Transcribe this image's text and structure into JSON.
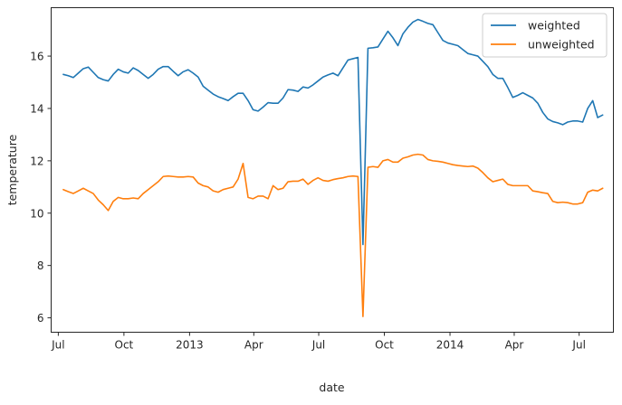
{
  "chart_data": {
    "type": "line",
    "xlabel": "date",
    "ylabel": "temperature",
    "ylim": [
      5.45,
      17.85
    ],
    "xlim": [
      "2012-06-21",
      "2014-08-18"
    ],
    "x_ticks": [
      {
        "date": "2012-07-01",
        "label": "Jul"
      },
      {
        "date": "2012-10-01",
        "label": "Oct"
      },
      {
        "date": "2013-01-01",
        "label": "2013"
      },
      {
        "date": "2013-04-01",
        "label": "Apr"
      },
      {
        "date": "2013-07-01",
        "label": "Jul"
      },
      {
        "date": "2013-10-01",
        "label": "Oct"
      },
      {
        "date": "2014-01-01",
        "label": "2014"
      },
      {
        "date": "2014-04-01",
        "label": "Apr"
      },
      {
        "date": "2014-07-01",
        "label": "Jul"
      }
    ],
    "y_ticks": [
      {
        "value": 6,
        "label": "6"
      },
      {
        "value": 8,
        "label": "8"
      },
      {
        "value": 10,
        "label": "10"
      },
      {
        "value": 12,
        "label": "12"
      },
      {
        "value": 14,
        "label": "14"
      },
      {
        "value": 16,
        "label": "16"
      }
    ],
    "x": [
      "2012-07-08",
      "2012-07-15",
      "2012-07-22",
      "2012-07-29",
      "2012-08-05",
      "2012-08-12",
      "2012-08-19",
      "2012-08-26",
      "2012-09-02",
      "2012-09-09",
      "2012-09-16",
      "2012-09-23",
      "2012-09-30",
      "2012-10-07",
      "2012-10-14",
      "2012-10-21",
      "2012-10-28",
      "2012-11-04",
      "2012-11-11",
      "2012-11-18",
      "2012-11-25",
      "2012-12-02",
      "2012-12-09",
      "2012-12-16",
      "2012-12-23",
      "2012-12-30",
      "2013-01-06",
      "2013-01-13",
      "2013-01-20",
      "2013-01-27",
      "2013-02-03",
      "2013-02-10",
      "2013-02-17",
      "2013-02-24",
      "2013-03-03",
      "2013-03-10",
      "2013-03-17",
      "2013-03-24",
      "2013-03-31",
      "2013-04-07",
      "2013-04-14",
      "2013-04-21",
      "2013-04-28",
      "2013-05-05",
      "2013-05-12",
      "2013-05-19",
      "2013-05-26",
      "2013-06-02",
      "2013-06-09",
      "2013-06-16",
      "2013-06-23",
      "2013-06-30",
      "2013-07-07",
      "2013-07-14",
      "2013-07-21",
      "2013-07-28",
      "2013-08-04",
      "2013-08-11",
      "2013-08-18",
      "2013-08-25",
      "2013-09-01",
      "2013-09-08",
      "2013-09-15",
      "2013-09-22",
      "2013-09-29",
      "2013-10-06",
      "2013-10-13",
      "2013-10-20",
      "2013-10-27",
      "2013-11-03",
      "2013-11-10",
      "2013-11-17",
      "2013-11-24",
      "2013-12-01",
      "2013-12-08",
      "2013-12-15",
      "2013-12-22",
      "2013-12-29",
      "2014-01-05",
      "2014-01-12",
      "2014-01-19",
      "2014-01-26",
      "2014-02-02",
      "2014-02-09",
      "2014-02-16",
      "2014-02-23",
      "2014-03-02",
      "2014-03-09",
      "2014-03-16",
      "2014-03-23",
      "2014-03-30",
      "2014-04-06",
      "2014-04-13",
      "2014-04-20",
      "2014-04-27",
      "2014-05-04",
      "2014-05-11",
      "2014-05-18",
      "2014-05-25",
      "2014-06-01",
      "2014-06-08",
      "2014-06-15",
      "2014-06-22",
      "2014-06-29",
      "2014-07-06",
      "2014-07-13",
      "2014-07-20",
      "2014-07-27",
      "2014-08-03"
    ],
    "series": [
      {
        "name": "weighted",
        "color": "#1f77b4",
        "values": [
          15.3,
          15.25,
          15.18,
          15.35,
          15.52,
          15.58,
          15.38,
          15.18,
          15.1,
          15.05,
          15.3,
          15.5,
          15.4,
          15.35,
          15.55,
          15.45,
          15.3,
          15.15,
          15.3,
          15.5,
          15.6,
          15.6,
          15.42,
          15.25,
          15.4,
          15.48,
          15.35,
          15.2,
          14.85,
          14.7,
          14.55,
          14.45,
          14.38,
          14.3,
          14.45,
          14.58,
          14.58,
          14.3,
          13.95,
          13.9,
          14.05,
          14.22,
          14.2,
          14.2,
          14.4,
          14.72,
          14.7,
          14.65,
          14.82,
          14.78,
          14.9,
          15.05,
          15.2,
          15.28,
          15.35,
          15.25,
          15.55,
          15.85,
          15.9,
          15.95,
          8.8,
          16.3,
          16.32,
          16.35,
          16.65,
          16.95,
          16.7,
          16.4,
          16.85,
          17.1,
          17.3,
          17.4,
          17.33,
          17.25,
          17.2,
          16.9,
          16.6,
          16.5,
          16.45,
          16.4,
          16.25,
          16.1,
          16.05,
          16.0,
          15.8,
          15.6,
          15.3,
          15.15,
          15.15,
          14.8,
          14.42,
          14.5,
          14.6,
          14.5,
          14.4,
          14.2,
          13.85,
          13.6,
          13.5,
          13.45,
          13.38,
          13.48,
          13.52,
          13.52,
          13.48,
          14.0,
          14.3,
          13.65,
          13.75
        ]
      },
      {
        "name": "unweighted",
        "color": "#ff7f0e",
        "values": [
          10.9,
          10.82,
          10.75,
          10.85,
          10.95,
          10.85,
          10.75,
          10.5,
          10.32,
          10.1,
          10.45,
          10.6,
          10.55,
          10.55,
          10.58,
          10.55,
          10.75,
          10.9,
          11.05,
          11.2,
          11.4,
          11.42,
          11.4,
          11.38,
          11.38,
          11.4,
          11.38,
          11.15,
          11.05,
          11.0,
          10.85,
          10.8,
          10.9,
          10.95,
          11.0,
          11.3,
          11.9,
          10.6,
          10.55,
          10.65,
          10.65,
          10.55,
          11.05,
          10.9,
          10.95,
          11.2,
          11.22,
          11.22,
          11.3,
          11.1,
          11.25,
          11.35,
          11.25,
          11.22,
          11.28,
          11.32,
          11.35,
          11.4,
          11.42,
          11.4,
          6.05,
          11.75,
          11.78,
          11.75,
          12.0,
          12.05,
          11.95,
          11.95,
          12.1,
          12.15,
          12.22,
          12.25,
          12.22,
          12.05,
          12.0,
          11.98,
          11.95,
          11.9,
          11.85,
          11.82,
          11.8,
          11.78,
          11.8,
          11.72,
          11.55,
          11.35,
          11.2,
          11.25,
          11.3,
          11.1,
          11.05,
          11.05,
          11.05,
          11.05,
          10.85,
          10.82,
          10.78,
          10.75,
          10.45,
          10.4,
          10.42,
          10.4,
          10.35,
          10.35,
          10.4,
          10.8,
          10.88,
          10.85,
          10.95
        ]
      }
    ],
    "legend": {
      "placement": "top-right",
      "entries": [
        "weighted",
        "unweighted"
      ]
    },
    "grid": false
  }
}
